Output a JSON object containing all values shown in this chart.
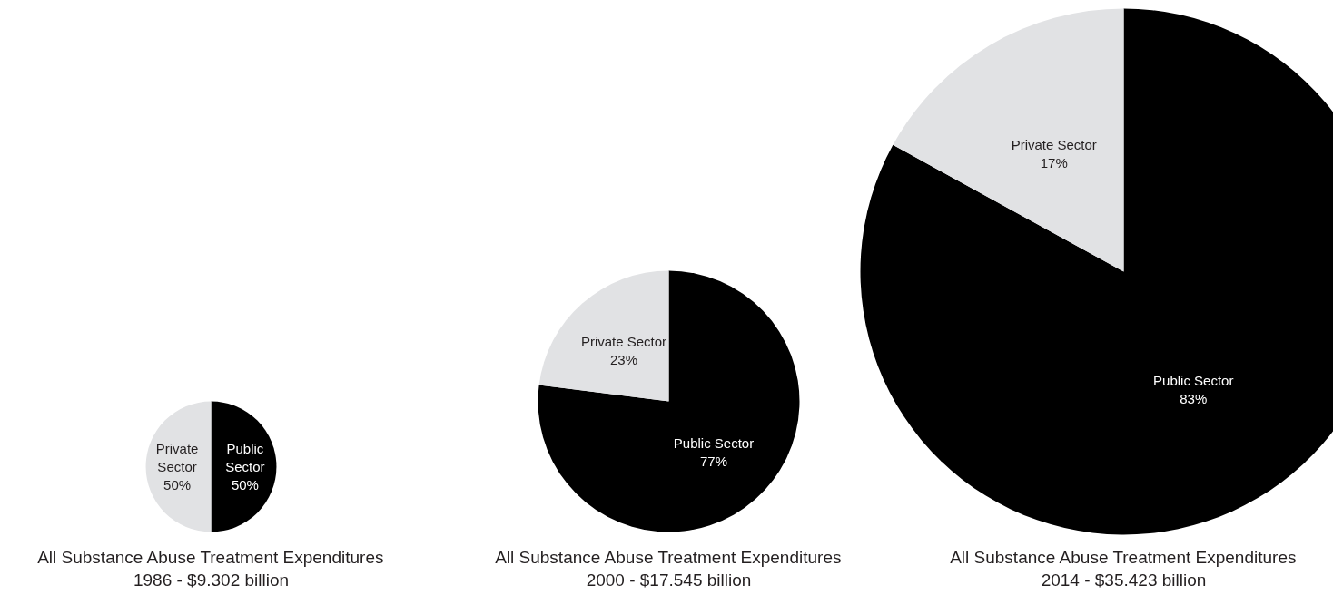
{
  "chart_data": [
    {
      "type": "pie",
      "title": "All Substance Abuse Treatment Expenditures",
      "subtitle": "1986 - $9.302 billion",
      "categories": [
        "Public Sector",
        "Private Sector"
      ],
      "values": [
        50,
        50
      ],
      "colors": [
        "#000000",
        "#e1e2e4"
      ],
      "value_labels": [
        "50%",
        "50%"
      ]
    },
    {
      "type": "pie",
      "title": "All Substance Abuse Treatment Expenditures",
      "subtitle": "2000 - $17.545 billion",
      "categories": [
        "Public Sector",
        "Private Sector"
      ],
      "values": [
        77,
        23
      ],
      "colors": [
        "#000000",
        "#e1e2e4"
      ],
      "value_labels": [
        "77%",
        "23%"
      ]
    },
    {
      "type": "pie",
      "title": "All Substance Abuse Treatment Expenditures",
      "subtitle": "2014 - $35.423 billion",
      "categories": [
        "Public Sector",
        "Private Sector"
      ],
      "values": [
        83,
        17
      ],
      "colors": [
        "#000000",
        "#e1e2e4"
      ],
      "value_labels": [
        "83%",
        "17%"
      ]
    }
  ]
}
